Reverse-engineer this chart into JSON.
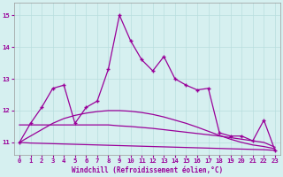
{
  "xlabel": "Windchill (Refroidissement éolien,°C)",
  "background_color": "#d6f0f0",
  "grid_color": "#b8dede",
  "line_color": "#990099",
  "xlim": [
    -0.5,
    23.5
  ],
  "ylim": [
    10.6,
    15.4
  ],
  "yticks": [
    11,
    12,
    13,
    14,
    15
  ],
  "xticks": [
    0,
    1,
    2,
    3,
    4,
    5,
    6,
    7,
    8,
    9,
    10,
    11,
    12,
    13,
    14,
    15,
    16,
    17,
    18,
    19,
    20,
    21,
    22,
    23
  ],
  "main_series": [
    11.0,
    11.6,
    12.1,
    12.7,
    12.8,
    11.6,
    12.1,
    12.3,
    13.3,
    15.0,
    14.2,
    13.6,
    13.25,
    13.7,
    13.0,
    12.8,
    12.65,
    12.7,
    11.3,
    11.2,
    11.2,
    11.05,
    11.7,
    10.75
  ],
  "trend_flat": [
    11.55,
    11.55,
    11.55,
    11.55,
    11.55,
    11.55,
    11.55,
    11.55,
    11.55,
    11.52,
    11.5,
    11.47,
    11.44,
    11.4,
    11.36,
    11.32,
    11.28,
    11.24,
    11.2,
    11.15,
    11.1,
    11.05,
    11.0,
    10.85
  ],
  "trend_arch": [
    11.0,
    11.2,
    11.4,
    11.6,
    11.75,
    11.85,
    11.92,
    11.97,
    12.0,
    12.0,
    11.98,
    11.94,
    11.88,
    11.8,
    11.7,
    11.6,
    11.48,
    11.35,
    11.22,
    11.1,
    11.0,
    10.92,
    10.87,
    10.8
  ],
  "trend_diagonal": [
    11.0,
    10.98,
    10.97,
    10.96,
    10.95,
    10.94,
    10.93,
    10.92,
    10.91,
    10.9,
    10.89,
    10.88,
    10.87,
    10.86,
    10.85,
    10.84,
    10.83,
    10.82,
    10.81,
    10.8,
    10.79,
    10.78,
    10.77,
    10.75
  ]
}
